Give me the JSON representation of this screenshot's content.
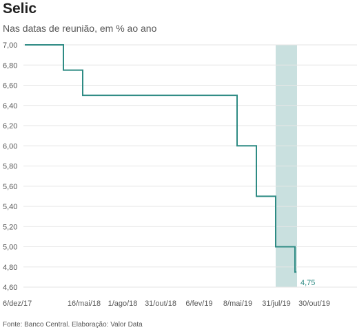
{
  "title": "Selic",
  "subtitle": "Nas datas de reunião, em % ao ano",
  "source": "Fonte: Banco Central. Elaboração: Valor Data",
  "colors": {
    "line": "#2e8b84",
    "highlight": "#c9e0df",
    "grid": "#e6e6e6"
  },
  "chart_data": {
    "type": "line",
    "step": true,
    "ylim": [
      4.6,
      7.0
    ],
    "grid": true,
    "y_ticks": [
      "7,00",
      "6,80",
      "6,60",
      "6,40",
      "6,20",
      "6,00",
      "5,80",
      "5,60",
      "5,40",
      "5,20",
      "5,00",
      "4,80",
      "4,60"
    ],
    "x_ticks": [
      "6/dez/17",
      "16/mai/18",
      "1/ago/18",
      "31/out/18",
      "6/fev/19",
      "8/mai/19",
      "31/jul/19",
      "30/out/19"
    ],
    "series": [
      {
        "values": [
          7.0,
          7.0,
          6.75,
          6.5,
          6.5,
          6.5,
          6.5,
          6.5,
          6.5,
          6.5,
          6.5,
          6.0,
          5.5,
          5.0,
          4.75
        ]
      }
    ],
    "highlight_range": [
      13,
      14
    ],
    "annotations": [
      {
        "text": "4,75",
        "index": 14
      }
    ]
  }
}
